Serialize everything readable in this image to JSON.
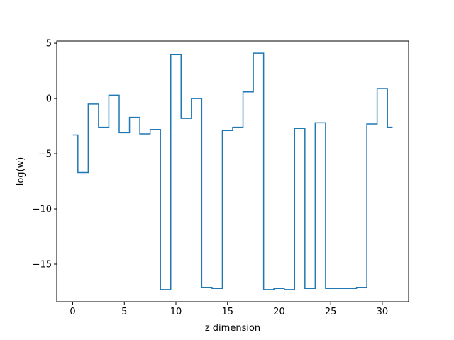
{
  "chart_data": {
    "type": "line",
    "drawstyle": "steps-mid",
    "title": "",
    "xlabel": "z dimension",
    "ylabel": "log(w)",
    "xlim": [
      -1.55,
      32.55
    ],
    "ylim": [
      -18.4,
      5.2
    ],
    "xticks": [
      0,
      5,
      10,
      15,
      20,
      25,
      30
    ],
    "yticks": [
      5,
      0,
      -5,
      -10,
      -15
    ],
    "ytick_labels": [
      "5",
      "0",
      "−5",
      "−10",
      "−15"
    ],
    "grid": false,
    "legend": "none",
    "series": [
      {
        "color": "#1f77b4",
        "x": [
          0,
          1,
          2,
          3,
          4,
          5,
          6,
          7,
          8,
          9,
          10,
          11,
          12,
          13,
          14,
          15,
          16,
          17,
          18,
          19,
          20,
          21,
          22,
          23,
          24,
          25,
          26,
          27,
          28,
          29,
          30,
          31
        ],
        "y": [
          -3.3,
          -6.7,
          -0.5,
          -2.6,
          0.3,
          -3.1,
          -1.7,
          -3.2,
          -2.8,
          -17.3,
          4.0,
          -1.8,
          0.0,
          -17.1,
          -17.2,
          -2.9,
          -2.6,
          0.6,
          4.1,
          -17.3,
          -17.2,
          -17.3,
          -2.7,
          -17.2,
          -2.2,
          -17.2,
          -17.2,
          -17.2,
          -17.1,
          -2.3,
          0.9,
          -2.6
        ]
      }
    ]
  }
}
